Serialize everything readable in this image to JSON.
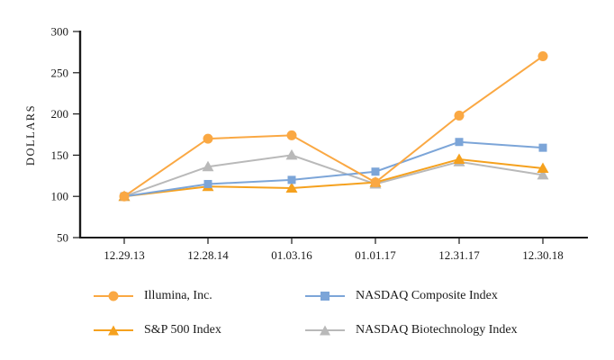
{
  "chart_data": {
    "type": "line",
    "title": "",
    "ylabel": "DOLLARS",
    "xlabel": "",
    "categories": [
      "12.29.13",
      "12.28.14",
      "01.03.16",
      "01.01.17",
      "12.31.17",
      "12.30.18"
    ],
    "ylim": [
      50,
      300
    ],
    "yticks": [
      50,
      100,
      150,
      200,
      250,
      300
    ],
    "grid": false,
    "legend_position": "bottom",
    "axis_color": "#1a1a1a",
    "series": [
      {
        "name": "Illumina, Inc.",
        "marker": "circle",
        "color": "#FAA843",
        "values": [
          100,
          170,
          174,
          117,
          198,
          270
        ]
      },
      {
        "name": "NASDAQ Composite Index",
        "marker": "square",
        "color": "#7CA5D8",
        "values": [
          100,
          115,
          120,
          130,
          166,
          159
        ]
      },
      {
        "name": "S&P 500 Index",
        "marker": "triangle",
        "color": "#F5A11E",
        "values": [
          100,
          112,
          110,
          117,
          145,
          134
        ]
      },
      {
        "name": "NASDAQ Biotechnology Index",
        "marker": "triangle",
        "color": "#B9B9B9",
        "values": [
          100,
          136,
          150,
          115,
          142,
          126
        ]
      }
    ]
  }
}
